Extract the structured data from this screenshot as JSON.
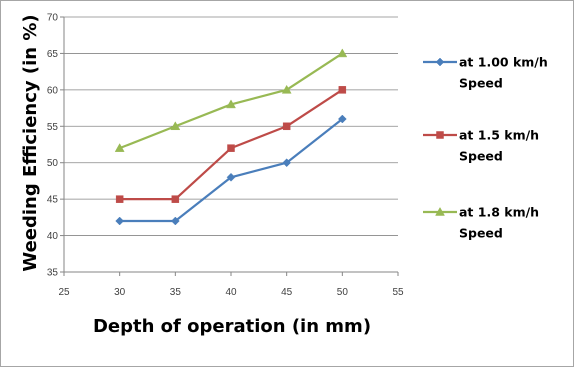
{
  "chart_data": {
    "type": "line",
    "title": "",
    "xlabel": "Depth of operation (in mm)",
    "ylabel": "Weeding Efficiency (in %)",
    "xlim": [
      25,
      55
    ],
    "ylim": [
      35,
      70
    ],
    "xticks": [
      "25",
      "30",
      "35",
      "40",
      "45",
      "50",
      "55"
    ],
    "yticks": [
      "35",
      "40",
      "45",
      "50",
      "55",
      "60",
      "65",
      "70"
    ],
    "grid": "horizontal",
    "legend_position": "right",
    "x": [
      30,
      35,
      40,
      45,
      50
    ],
    "series": [
      {
        "name_lines": [
          "at 1.00 km/h",
          "Speed"
        ],
        "values": [
          42,
          42,
          48,
          50,
          56
        ],
        "color": "#4a7ebb",
        "marker": "diamond"
      },
      {
        "name_lines": [
          "at 1.5 km/h",
          "Speed"
        ],
        "values": [
          45,
          45,
          52,
          55,
          60
        ],
        "color": "#be4b48",
        "marker": "square"
      },
      {
        "name_lines": [
          "at 1.8 km/h",
          "Speed"
        ],
        "values": [
          52,
          55,
          58,
          60,
          65
        ],
        "color": "#98b954",
        "marker": "triangle"
      }
    ]
  }
}
